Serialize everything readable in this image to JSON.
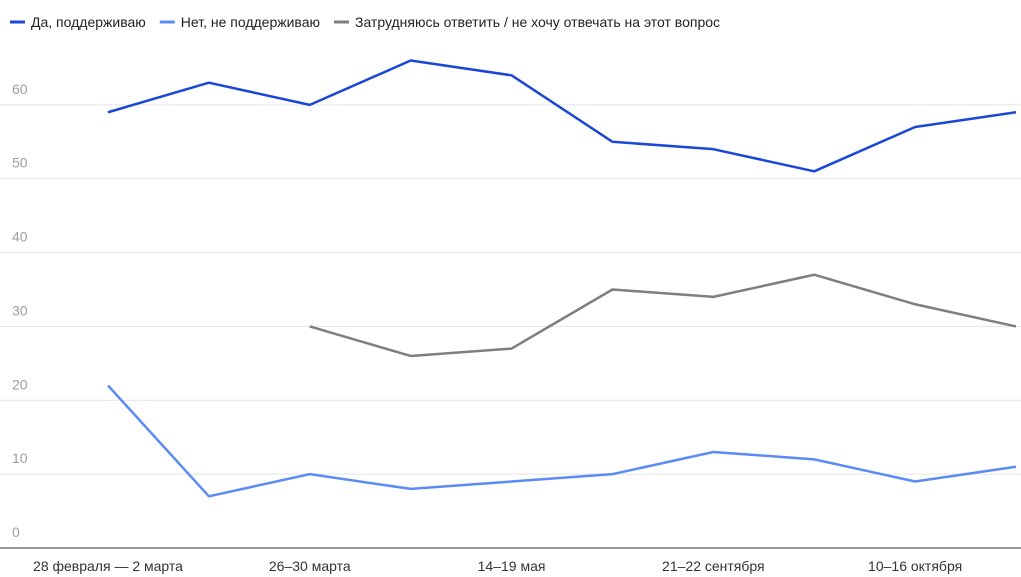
{
  "chart_data": {
    "type": "line",
    "categories": [
      "28 февраля — 2 марта",
      null,
      "26–30 марта",
      null,
      "14–19 мая",
      null,
      "21–22 сентября",
      null,
      "10–16 октября",
      null
    ],
    "series": [
      {
        "name": "Да, поддерживаю",
        "color": "#1a47d6",
        "values": [
          59,
          63,
          60,
          66,
          64,
          55,
          54,
          51,
          57,
          59
        ]
      },
      {
        "name": "Нет, не поддерживаю",
        "color": "#5b8cf5",
        "values": [
          22,
          7,
          10,
          8,
          9,
          10,
          13,
          12,
          9,
          11
        ]
      },
      {
        "name": "Затрудняюсь ответить / не хочу отвечать на этот вопрос",
        "color": "#7f7f7f",
        "values": [
          null,
          null,
          30,
          26,
          27,
          35,
          34,
          37,
          33,
          30
        ]
      }
    ],
    "ylim": [
      0,
      70
    ],
    "yticks": [
      0,
      10,
      20,
      30,
      40,
      50,
      60
    ],
    "grid": true,
    "legend": "top"
  }
}
